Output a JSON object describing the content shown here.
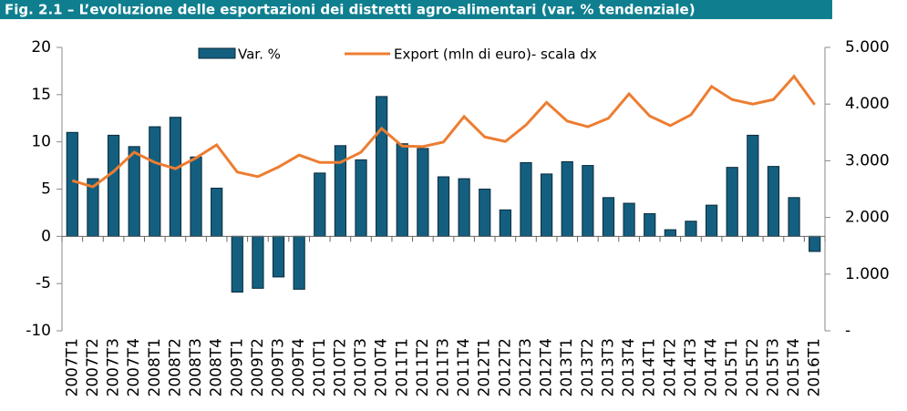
{
  "chart_data": {
    "type": "bar",
    "title": "Fig. 2.1 – L’evoluzione delle esportazioni dei distretti agro-alimentari (var. % tendenziale)",
    "categories": [
      "2007T1",
      "2007T2",
      "2007T3",
      "2007T4",
      "2008T1",
      "2008T2",
      "2008T3",
      "2008T4",
      "2009T1",
      "2009T2",
      "2009T3",
      "2009T4",
      "2010T1",
      "2010T2",
      "2010T3",
      "2010T4",
      "2011T1",
      "2011T2",
      "2011T3",
      "2011T4",
      "2012T1",
      "2012T2",
      "2012T3",
      "2012T4",
      "2013T1",
      "2013T2",
      "2013T3",
      "2013T4",
      "2014T1",
      "2014T2",
      "2014T3",
      "2014T4",
      "2015T1",
      "2015T2",
      "2015T3",
      "2015T4",
      "2016T1"
    ],
    "series": [
      {
        "name": "Var. %",
        "type": "bar",
        "color": "#145f7f",
        "values": [
          11,
          6.1,
          10.7,
          9.5,
          11.6,
          12.6,
          8.4,
          5.1,
          -5.9,
          -5.5,
          -4.3,
          -5.6,
          6.7,
          9.6,
          8.1,
          14.8,
          9.8,
          9.3,
          6.3,
          6.1,
          5.0,
          2.8,
          7.8,
          6.6,
          7.9,
          7.5,
          4.1,
          3.5,
          2.4,
          0.7,
          1.6,
          3.3,
          7.3,
          10.7,
          7.4,
          4.1,
          -1.6
        ]
      },
      {
        "name": "Export (mln di euro)- scala dx",
        "type": "line",
        "axis": "y2",
        "color": "#ed7d31",
        "values": [
          2650,
          2540,
          2810,
          3150,
          2970,
          2860,
          3050,
          3280,
          2800,
          2720,
          2890,
          3100,
          2970,
          2970,
          3150,
          3570,
          3260,
          3250,
          3330,
          3780,
          3420,
          3340,
          3630,
          4030,
          3700,
          3600,
          3750,
          4180,
          3790,
          3620,
          3810,
          4310,
          4080,
          4000,
          4080,
          4490,
          3990
        ]
      }
    ],
    "ylim": [
      -10,
      20
    ],
    "yticks": [
      -10,
      -5,
      0,
      5,
      10,
      15,
      20
    ],
    "y2lim": [
      0,
      5000
    ],
    "y2ticks": [
      {
        "value": 0,
        "label": "-"
      },
      {
        "value": 1000,
        "label": "1.000"
      },
      {
        "value": 2000,
        "label": "2.000"
      },
      {
        "value": 3000,
        "label": "3.000"
      },
      {
        "value": 4000,
        "label": "4.000"
      },
      {
        "value": 5000,
        "label": "5.000"
      }
    ]
  }
}
